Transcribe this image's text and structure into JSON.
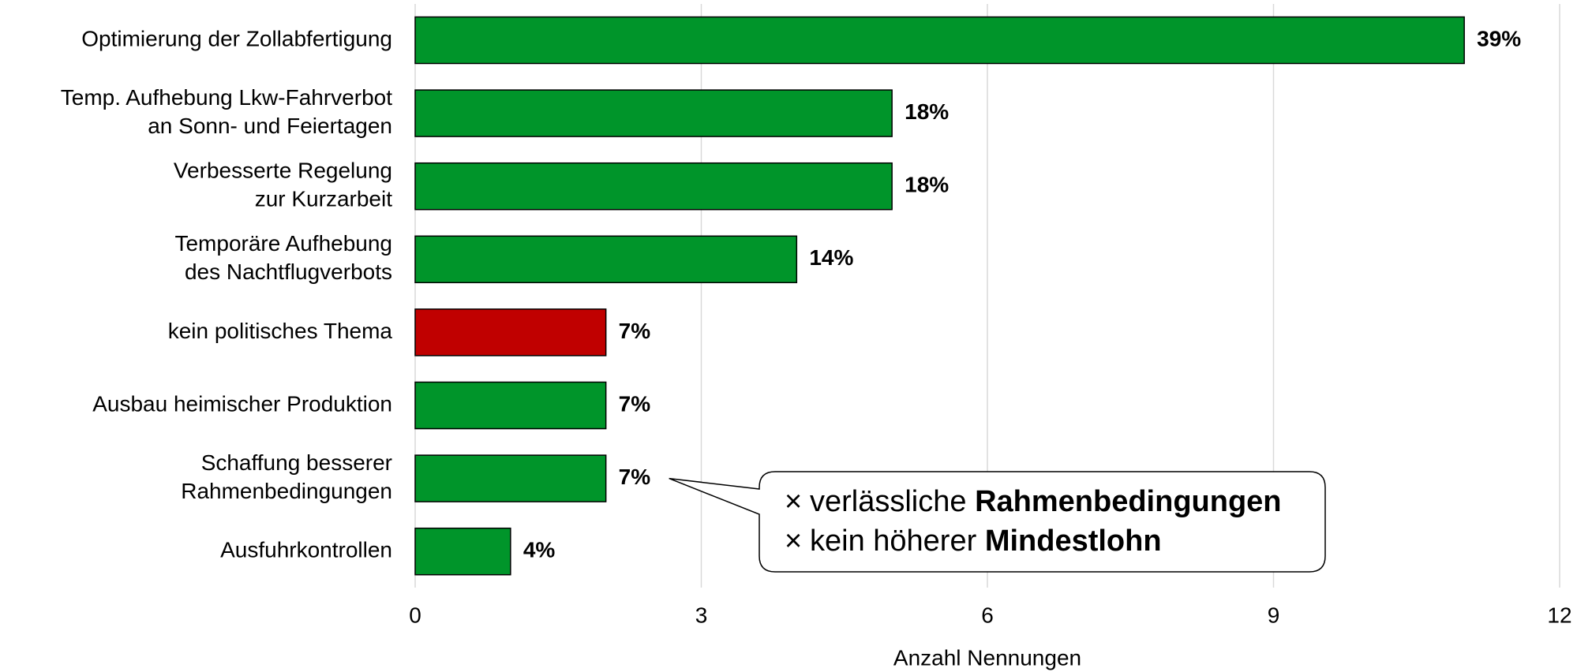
{
  "chart_data": {
    "type": "bar",
    "orientation": "horizontal",
    "categories": [
      [
        "Optimierung der Zollabfertigung"
      ],
      [
        "Temp. Aufhebung Lkw-Fahrverbot",
        "an Sonn- und Feiertagen"
      ],
      [
        "Verbesserte Regelung",
        "zur Kurzarbeit"
      ],
      [
        "Temporäre Aufhebung",
        "des Nachtflugverbots"
      ],
      [
        "kein politisches Thema"
      ],
      [
        "Ausbau heimischer Produktion"
      ],
      [
        "Schaffung besserer",
        "Rahmenbedingungen"
      ],
      [
        "Ausfuhrkontrollen"
      ]
    ],
    "values": [
      11,
      5,
      5,
      4,
      2,
      2,
      2,
      1
    ],
    "value_labels": [
      "39%",
      "18%",
      "18%",
      "14%",
      "7%",
      "7%",
      "7%",
      "4%"
    ],
    "colors": [
      "#00952a",
      "#00952a",
      "#00952a",
      "#00952a",
      "#c00000",
      "#00952a",
      "#00952a",
      "#00952a"
    ],
    "xlim": [
      0,
      12
    ],
    "xticks": [
      0,
      3,
      6,
      9,
      12
    ],
    "grid": true,
    "xlabel": "Anzahl Nennungen",
    "annotation": {
      "target": 6,
      "lines": [
        {
          "text": "verlässliche ",
          "bold": "Rahmenbedingungen"
        },
        {
          "text": "kein höherer ",
          "bold": "Mindestlohn"
        }
      ]
    }
  }
}
